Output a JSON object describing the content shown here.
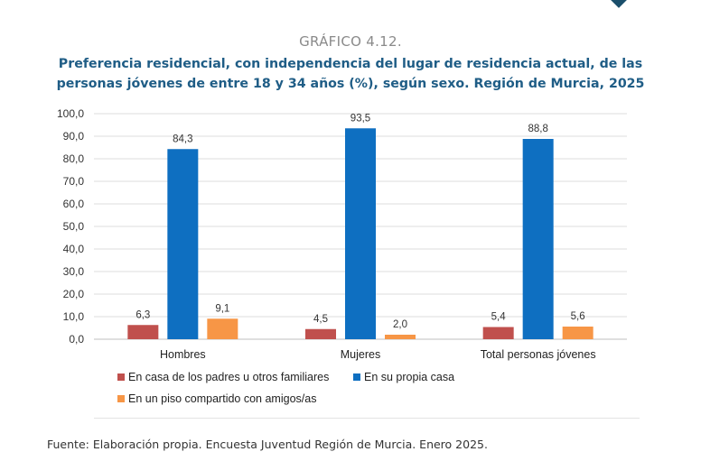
{
  "figure_label": "GRÁFICO 4.12.",
  "source": "Fuente: Elaboración propia. Encuesta Juventud Región de Murcia. Enero 2025.",
  "colors": {
    "title": "#1f5d86",
    "series": [
      "#c0504d",
      "#0e6fc1",
      "#f79646"
    ]
  },
  "chart_data": {
    "type": "bar",
    "title": "Preferencia residencial, con independencia del lugar de residencia actual, de las personas jóvenes de entre 18 y 34 años (%), según sexo. Región de Murcia, 2025",
    "categories": [
      "Hombres",
      "Mujeres",
      "Total personas jóvenes"
    ],
    "series": [
      {
        "name": "En casa de los padres u otros familiares",
        "values": [
          6.3,
          4.5,
          5.4
        ],
        "labels": [
          "6,3",
          "4,5",
          "5,4"
        ]
      },
      {
        "name": "En su propia casa",
        "values": [
          84.3,
          93.5,
          88.8
        ],
        "labels": [
          "84,3",
          "93,5",
          "88,8"
        ]
      },
      {
        "name": "En un piso compartido con amigos/as",
        "values": [
          9.1,
          2.0,
          5.6
        ],
        "labels": [
          "9,1",
          "2,0",
          "5,6"
        ]
      }
    ],
    "ylim": [
      0,
      100
    ],
    "yticks": [
      "0,0",
      "10,0",
      "20,0",
      "30,0",
      "40,0",
      "50,0",
      "60,0",
      "70,0",
      "80,0",
      "90,0",
      "100,0"
    ],
    "grid": true,
    "legend_position": "bottom-left"
  }
}
